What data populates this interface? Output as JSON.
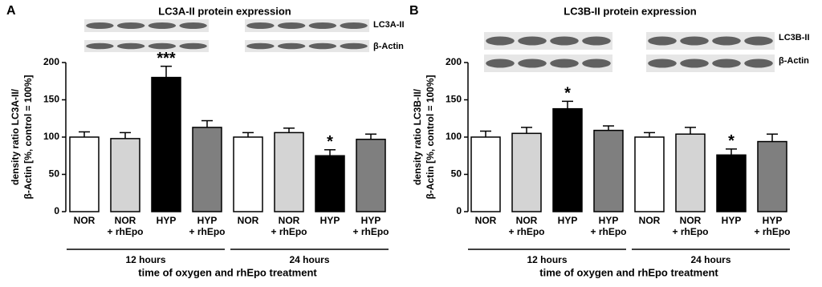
{
  "chart_data": [
    {
      "type": "bar",
      "panel": "A",
      "title": "LC3A-II protein expression",
      "blot_labels": [
        "LC3A-II",
        "β-Actin"
      ],
      "ylabel": [
        "density ratio LC3A-II/",
        "β-Actin [%, control = 100%]"
      ],
      "categories": [
        [
          "NOR"
        ],
        [
          "NOR",
          "+ rhEpo"
        ],
        [
          "HYP"
        ],
        [
          "HYP",
          "+ rhEpo"
        ],
        [
          "NOR"
        ],
        [
          "NOR",
          "+ rhEpo"
        ],
        [
          "HYP"
        ],
        [
          "HYP",
          "+ rhEpo"
        ]
      ],
      "values": [
        100,
        98,
        180,
        113,
        100,
        106,
        75,
        97
      ],
      "errors": [
        7,
        8,
        15,
        9,
        6,
        6,
        8,
        7
      ],
      "significance": [
        null,
        null,
        "***",
        null,
        null,
        null,
        "*",
        null
      ],
      "colors": [
        "#ffffff",
        "#d4d4d4",
        "#000000",
        "#7f7f7f",
        "#ffffff",
        "#d4d4d4",
        "#000000",
        "#7f7f7f"
      ],
      "groups": [
        "12 hours",
        "24 hours"
      ],
      "xlabel": "time of oxygen and rhEpo treatment",
      "ylim": [
        0,
        200
      ],
      "yticks": [
        0,
        50,
        100,
        150,
        200
      ]
    },
    {
      "type": "bar",
      "panel": "B",
      "title": "LC3B-II protein expression",
      "blot_labels": [
        "LC3B-II",
        "β-Actin"
      ],
      "ylabel": [
        "density ratio LC3B-II/",
        "β-Actin [%, control = 100%]"
      ],
      "categories": [
        [
          "NOR"
        ],
        [
          "NOR",
          "+ rhEpo"
        ],
        [
          "HYP"
        ],
        [
          "HYP",
          "+ rhEpo"
        ],
        [
          "NOR"
        ],
        [
          "NOR",
          "+ rhEpo"
        ],
        [
          "HYP"
        ],
        [
          "HYP",
          "+ rhEpo"
        ]
      ],
      "values": [
        100,
        105,
        138,
        109,
        100,
        104,
        76,
        94
      ],
      "errors": [
        8,
        8,
        10,
        6,
        6,
        9,
        8,
        10
      ],
      "significance": [
        null,
        null,
        "*",
        null,
        null,
        null,
        "*",
        null
      ],
      "colors": [
        "#ffffff",
        "#d4d4d4",
        "#000000",
        "#7f7f7f",
        "#ffffff",
        "#d4d4d4",
        "#000000",
        "#7f7f7f"
      ],
      "groups": [
        "12 hours",
        "24 hours"
      ],
      "xlabel": "time of oxygen and rhEpo treatment",
      "ylim": [
        0,
        200
      ],
      "yticks": [
        0,
        50,
        100,
        150,
        200
      ]
    }
  ]
}
